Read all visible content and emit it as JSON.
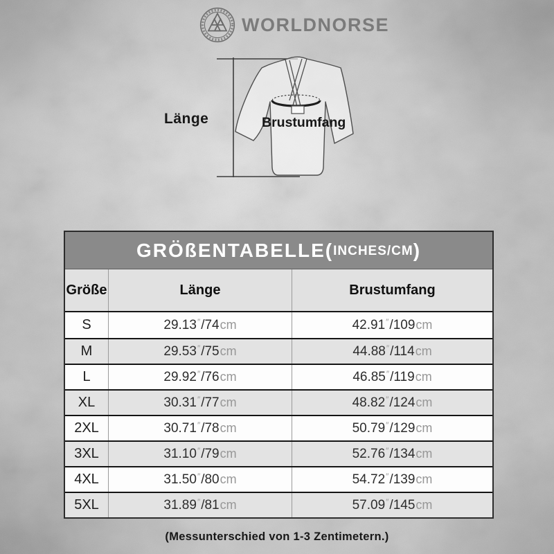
{
  "brand": {
    "name": "WORLDNORSE",
    "logo_icon": "valknut-in-knotwork-ring"
  },
  "diagram": {
    "length_label": "Länge",
    "chest_label": "Brustumfang"
  },
  "table": {
    "title": {
      "prefix": "GRÖßENTABELLE(",
      "unit": "INCHES/CM",
      "suffix": ")"
    },
    "columns": [
      "Größe",
      "Länge",
      "Brustumfang"
    ],
    "units": {
      "inch_mark": "″",
      "slash": "/",
      "cm": "cm"
    },
    "rows": [
      {
        "size": "S",
        "laenge_in": "29.13",
        "laenge_cm": "74",
        "brust_in": "42.91",
        "brust_cm": "109"
      },
      {
        "size": "M",
        "laenge_in": "29.53",
        "laenge_cm": "75",
        "brust_in": "44.88",
        "brust_cm": "114"
      },
      {
        "size": "L",
        "laenge_in": "29.92",
        "laenge_cm": "76",
        "brust_in": "46.85",
        "brust_cm": "119"
      },
      {
        "size": "XL",
        "laenge_in": "30.31",
        "laenge_cm": "77",
        "brust_in": "48.82",
        "brust_cm": "124"
      },
      {
        "size": "2XL",
        "laenge_in": "30.71",
        "laenge_cm": "78",
        "brust_in": "50.79",
        "brust_cm": "129"
      },
      {
        "size": "3XL",
        "laenge_in": "31.10",
        "laenge_cm": "79",
        "brust_in": "52.76",
        "brust_cm": "134"
      },
      {
        "size": "4XL",
        "laenge_in": "31.50",
        "laenge_cm": "80",
        "brust_in": "54.72",
        "brust_cm": "139"
      },
      {
        "size": "5XL",
        "laenge_in": "31.89",
        "laenge_cm": "81",
        "brust_in": "57.09",
        "brust_cm": "145"
      }
    ]
  },
  "footer": {
    "note": "(Messunterschied von 1-3 Zentimetern.)"
  },
  "colors": {
    "title_bar": "#8a8a8a",
    "header_row": "#e1e1e1",
    "row_alt": "#e3e3e3",
    "row_white": "#fdfdfd",
    "row_border": "#141414",
    "unit_text": "#979797",
    "brand_text": "#7b7b7b",
    "background": "#bdbdbd"
  }
}
